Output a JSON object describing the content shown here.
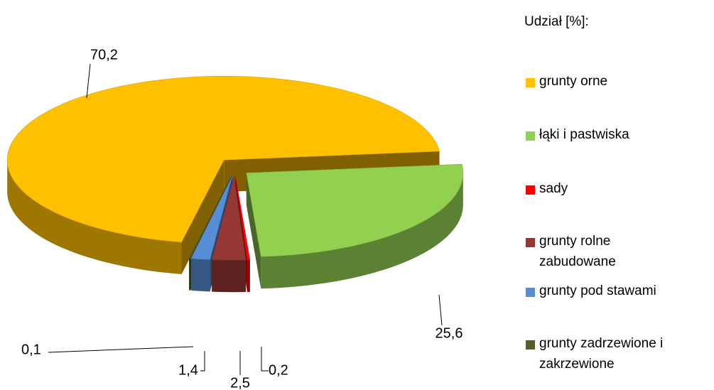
{
  "chart_data": {
    "type": "pie3d",
    "legend_title": "Udział [%]:",
    "categories": [
      "grunty orne",
      "łąki i pastwiska",
      "sady",
      "grunty rolne zabudowane",
      "grunty pod stawami",
      "grunty zadrzewione i zakrzewione"
    ],
    "values": [
      70.2,
      25.6,
      0.2,
      2.5,
      1.4,
      0.1
    ],
    "value_labels": [
      "70,2",
      "25,6",
      "0,2",
      "2,5",
      "1,4",
      "0,1"
    ],
    "colors": [
      "#ffc000",
      "#92d050",
      "#ff0000",
      "#953735",
      "#558ed5",
      "#4f6228"
    ],
    "legend": "right"
  }
}
